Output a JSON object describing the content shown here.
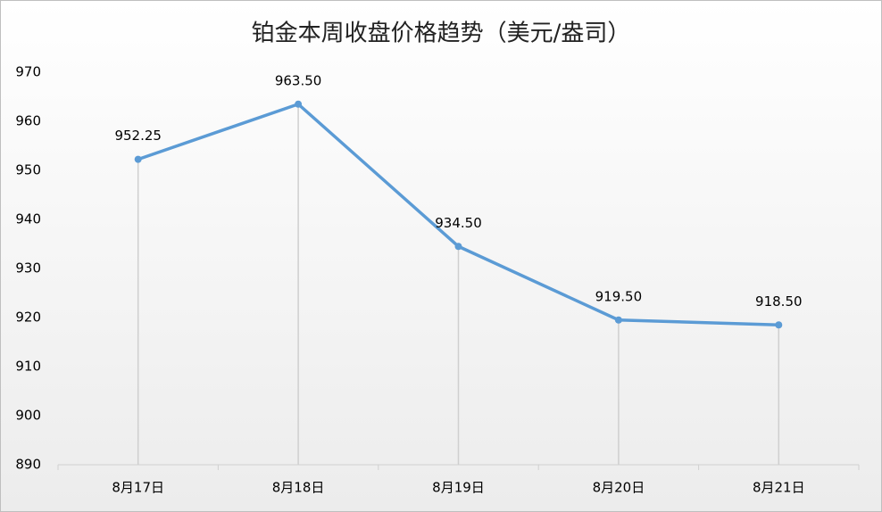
{
  "chart_data": {
    "type": "line",
    "title": "铂金本周收盘价格趋势（美元/盎司）",
    "categories": [
      "8月17日",
      "8月18日",
      "8月19日",
      "8月20日",
      "8月21日"
    ],
    "values": [
      952.25,
      963.5,
      934.5,
      919.5,
      918.5
    ],
    "value_labels": [
      "952.25",
      "963.50",
      "934.50",
      "919.50",
      "918.50"
    ],
    "color": "#5b9bd5",
    "ylim": [
      890,
      970
    ],
    "yticks": [
      890,
      900,
      910,
      920,
      930,
      940,
      950,
      960,
      970
    ],
    "drop_lines": true
  }
}
